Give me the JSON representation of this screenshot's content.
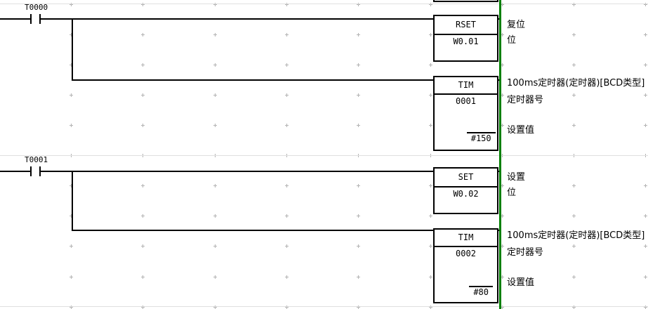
{
  "app": {
    "view": "ladder-diagram"
  },
  "colors": {
    "right_bus_bar": "#008000",
    "wire": "#000000",
    "grid_mark": "#b3b3b3",
    "rung_separator": "#e0e0e0"
  },
  "rungs": [
    {
      "contact": {
        "label": "T0000"
      },
      "instructions": [
        {
          "mnemonic": "RSET",
          "operand1": "W0.01",
          "comment1": "复位",
          "comment2": "位"
        },
        {
          "mnemonic": "TIM",
          "operand1": "0001",
          "operand2": "#150",
          "comment1": "100ms定时器(定时器)[BCD类型]",
          "comment2": "定时器号",
          "comment3": "设置值"
        }
      ]
    },
    {
      "contact": {
        "label": "T0001"
      },
      "instructions": [
        {
          "mnemonic": "SET",
          "operand1": "W0.02",
          "comment1": "设置",
          "comment2": "位"
        },
        {
          "mnemonic": "TIM",
          "operand1": "0002",
          "operand2": "#80",
          "comment1": "100ms定时器(定时器)[BCD类型]",
          "comment2": "定时器号",
          "comment3": "设置值"
        }
      ]
    }
  ]
}
